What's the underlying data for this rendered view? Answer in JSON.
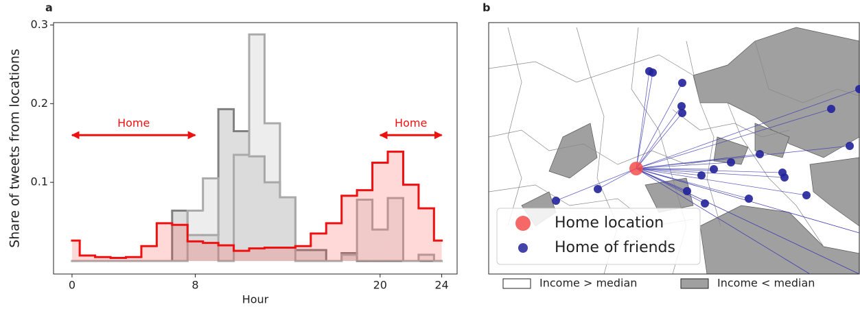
{
  "chart_data": [
    {
      "type": "step",
      "label": "a",
      "xlabel": "Hour",
      "ylabel": "Share of tweets from locations",
      "x": [
        0,
        1,
        2,
        3,
        4,
        5,
        6,
        7,
        8,
        9,
        10,
        11,
        12,
        13,
        14,
        15,
        16,
        17,
        18,
        19,
        20,
        21,
        22,
        23,
        24
      ],
      "xlim": [
        -1.2,
        25
      ],
      "ylim": [
        -0.0165,
        0.303
      ],
      "xticks": [
        0,
        8,
        20,
        24
      ],
      "yticks": [
        0.1,
        0.2,
        0.3
      ],
      "series": [
        {
          "color": "#808080",
          "fill": "rgba(160,160,160,0.35)",
          "values": [
            0,
            0,
            0,
            0,
            0,
            0,
            0,
            0.064,
            0.033,
            0.033,
            0.193,
            0.165,
            0.133,
            0.1,
            0.081,
            0.014,
            0.014,
            0,
            0.01,
            0,
            0,
            0,
            0,
            0,
            0
          ]
        },
        {
          "color": "#aaaaaa",
          "fill": "rgba(215,215,215,0.45)",
          "values": [
            0,
            0,
            0,
            0,
            0,
            0,
            0,
            0,
            0.064,
            0.105,
            0,
            0.135,
            0.288,
            0.175,
            0.081,
            0,
            0,
            0,
            0.008,
            0.078,
            0.04,
            0.08,
            0,
            0.008,
            0
          ]
        },
        {
          "color": "#ee1111",
          "fill": "rgba(255,60,60,0.2)",
          "values": [
            0.026,
            0.007,
            0.005,
            0.004,
            0.005,
            0.019,
            0.048,
            0.046,
            0.025,
            0.023,
            0.02,
            0.013,
            0.016,
            0.017,
            0.017,
            0.019,
            0.035,
            0.048,
            0.083,
            0.09,
            0.125,
            0.139,
            0.097,
            0.067,
            0.026
          ]
        }
      ],
      "annotations": [
        {
          "text": "Home",
          "x": [
            0,
            8
          ],
          "y": 0.16,
          "color": "#ee1111"
        },
        {
          "text": "Home",
          "x": [
            20,
            24
          ],
          "y": 0.16,
          "color": "#ee1111"
        }
      ]
    },
    {
      "type": "map",
      "label": "b",
      "legend": [
        {
          "name": "Home location",
          "color": "#f44d4d"
        },
        {
          "name": "Home of friends",
          "color": "#22229a"
        }
      ],
      "income_legend": [
        {
          "name": "Income > median",
          "color": "#ffffff"
        },
        {
          "name": "Income < median",
          "color": "#a0a0a0"
        }
      ]
    }
  ]
}
